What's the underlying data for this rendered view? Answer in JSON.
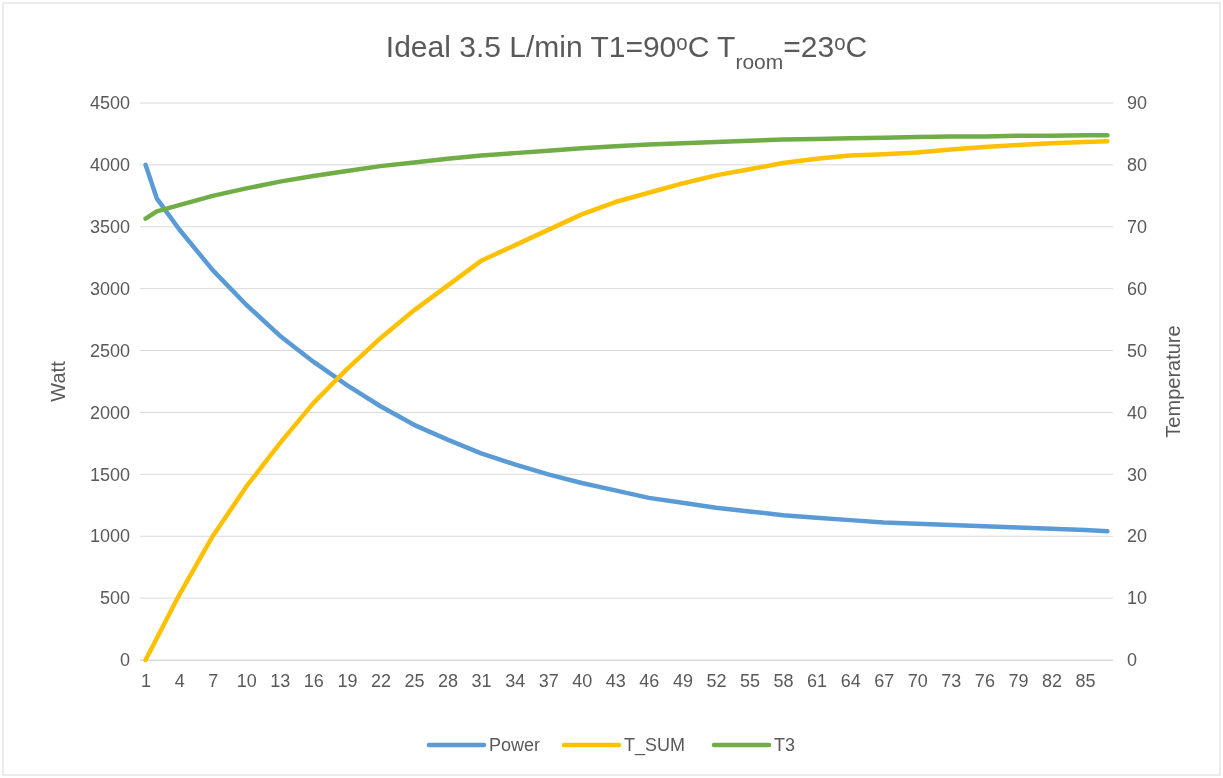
{
  "chart_data": {
    "type": "line",
    "title": "Ideal 3.5 L/min T1=90ᵒC T$_{room}$=23ᵒC",
    "ylabel": "Watt",
    "y2label": "Temperature",
    "xlim": [
      0.5,
      87.5
    ],
    "xticks": [
      1,
      4,
      7,
      10,
      13,
      16,
      19,
      22,
      25,
      28,
      31,
      34,
      37,
      40,
      43,
      46,
      49,
      52,
      55,
      58,
      61,
      64,
      67,
      70,
      73,
      76,
      79,
      82,
      85
    ],
    "ylim": [
      0,
      4500
    ],
    "yticks": [
      0,
      500,
      1000,
      1500,
      2000,
      2500,
      3000,
      3500,
      4000,
      4500
    ],
    "y2lim": [
      0,
      90
    ],
    "y2ticks": [
      0,
      10,
      20,
      30,
      40,
      50,
      60,
      70,
      80,
      90
    ],
    "grid": "y",
    "legend": "bottom",
    "marker": "none",
    "line_style": "solid",
    "series": [
      {
        "name": "Power",
        "color": "#5b9bd5",
        "x": [
          1,
          2,
          4,
          7,
          10,
          13,
          16,
          19,
          22,
          25,
          28,
          31,
          34,
          37,
          40,
          43,
          46,
          49,
          52,
          55,
          58,
          61,
          64,
          67,
          70,
          73,
          76,
          79,
          82,
          85,
          87
        ],
        "values": [
          4000,
          3730,
          3480,
          3150,
          2870,
          2620,
          2410,
          2220,
          2050,
          1900,
          1780,
          1670,
          1580,
          1500,
          1430,
          1370,
          1310,
          1270,
          1230,
          1200,
          1170,
          1150,
          1130,
          1110,
          1100,
          1090,
          1080,
          1070,
          1060,
          1050,
          1040
        ]
      },
      {
        "name": "T_SUM",
        "color": "#ffc000",
        "axis": "y2",
        "x": [
          1,
          4,
          7,
          10,
          13,
          16,
          19,
          22,
          25,
          28,
          31,
          34,
          37,
          40,
          43,
          46,
          49,
          52,
          55,
          58,
          61,
          64,
          67,
          70,
          73,
          76,
          79,
          82,
          85,
          87
        ],
        "values": [
          0,
          10.5,
          20,
          28,
          35,
          41.5,
          47,
          52,
          56.5,
          60.5,
          64.5,
          67,
          69.5,
          72,
          74,
          75.5,
          77,
          78.3,
          79.3,
          80.3,
          81,
          81.5,
          81.7,
          82,
          82.5,
          82.9,
          83.2,
          83.5,
          83.7,
          83.8
        ]
      },
      {
        "name": "T3",
        "color": "#70ad47",
        "axis": "y2",
        "x": [
          1,
          2,
          4,
          7,
          10,
          13,
          16,
          19,
          22,
          25,
          28,
          31,
          34,
          37,
          40,
          43,
          46,
          49,
          52,
          55,
          58,
          61,
          64,
          67,
          70,
          73,
          76,
          79,
          82,
          85,
          87
        ],
        "values": [
          71.3,
          72.5,
          73.5,
          75,
          76.2,
          77.3,
          78.2,
          79,
          79.8,
          80.4,
          81,
          81.5,
          81.9,
          82.3,
          82.7,
          83,
          83.3,
          83.5,
          83.7,
          83.9,
          84.1,
          84.2,
          84.3,
          84.4,
          84.5,
          84.6,
          84.6,
          84.7,
          84.7,
          84.8,
          84.8
        ]
      }
    ]
  }
}
